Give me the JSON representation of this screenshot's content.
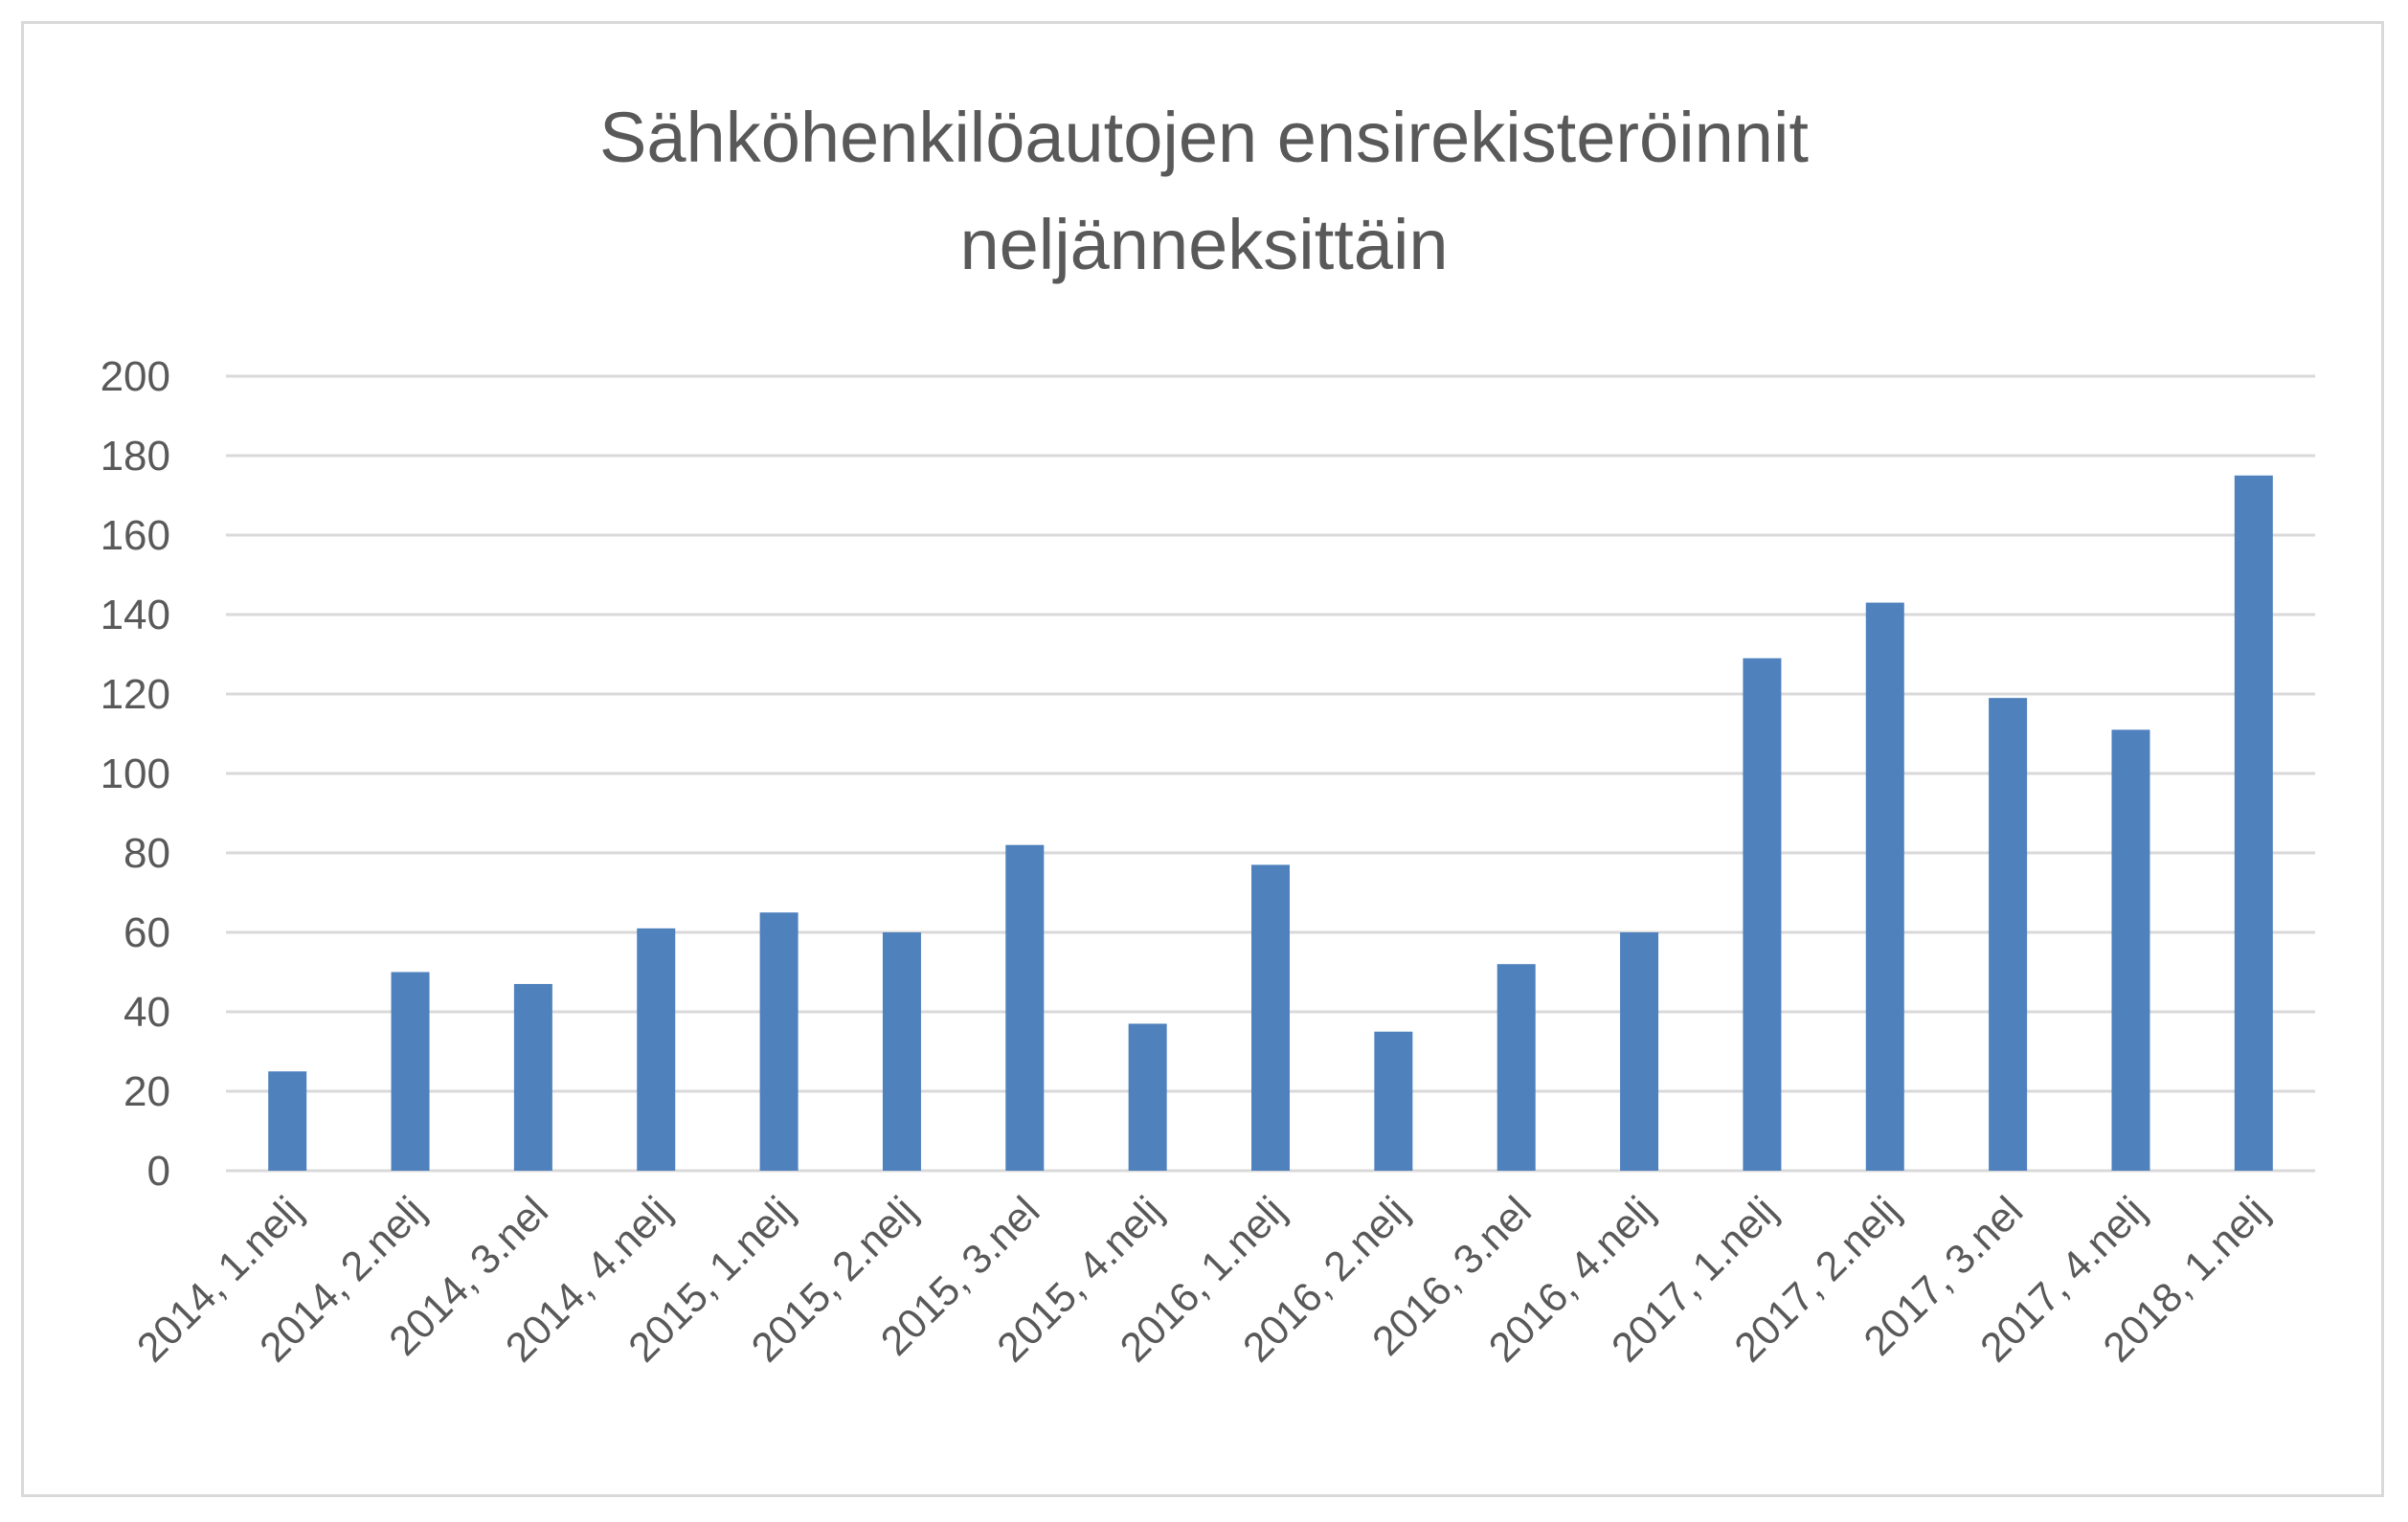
{
  "chart_data": {
    "type": "bar",
    "title_lines": [
      "Sähköhenkilöautojen ensirekisteröinnit",
      "neljänneksittäin"
    ],
    "categories": [
      "2014, 1.nelj",
      "2014, 2.nelj",
      "2014, 3.nel",
      "2014, 4.nelj",
      "2015, 1.nelj",
      "2015, 2.nelj",
      "2015, 3.nel",
      "2015, 4.nelj",
      "2016, 1.nelj",
      "2016, 2.nelj",
      "2016, 3.nel",
      "2016, 4.nelj",
      "2017, 1.nelj",
      "2017, 2.nelj",
      "2017, 3.nel",
      "2017, 4.nelj",
      "2018, 1.nelj"
    ],
    "values": [
      25,
      50,
      47,
      61,
      65,
      60,
      82,
      37,
      77,
      35,
      52,
      60,
      129,
      143,
      119,
      111,
      175
    ],
    "ylim": [
      0,
      200
    ],
    "yticks": [
      "0",
      "20",
      "40",
      "60",
      "80",
      "100",
      "120",
      "140",
      "160",
      "180",
      "200"
    ],
    "xlabel": "",
    "ylabel": "",
    "grid": true,
    "legend": "none",
    "colors": {
      "bar": "#4f81bd",
      "grid": "#d9d9d9",
      "text": "#595959"
    }
  }
}
